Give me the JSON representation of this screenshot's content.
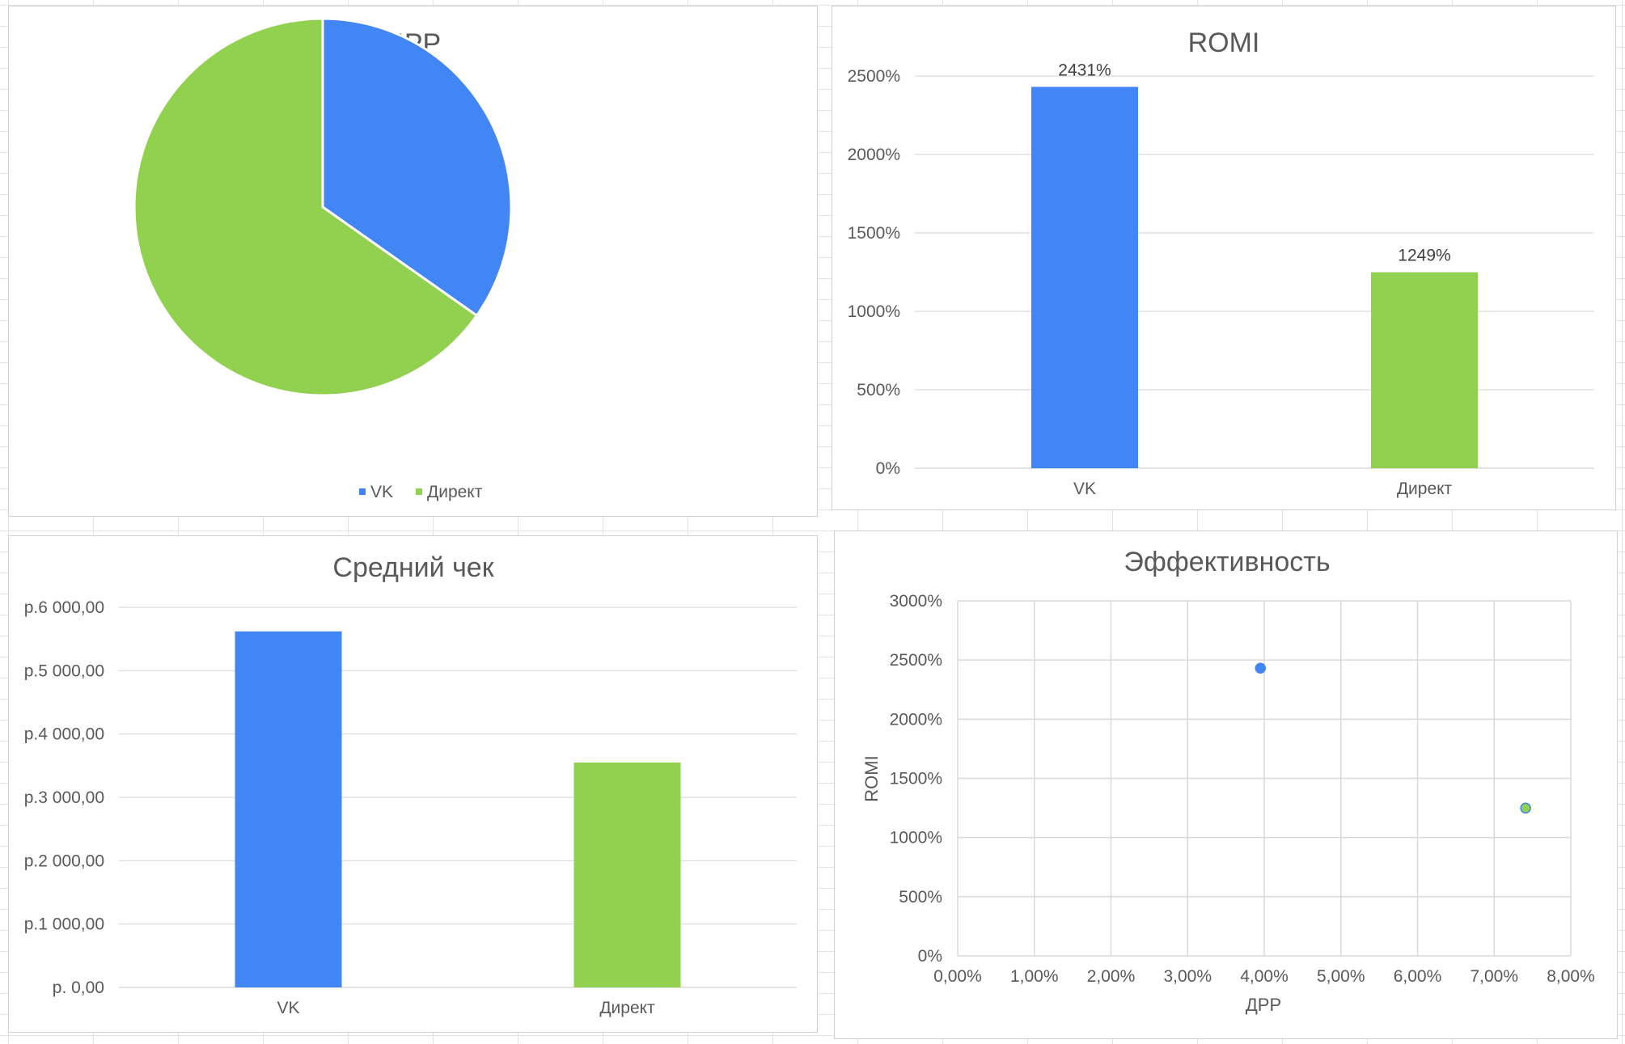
{
  "colors": {
    "vk": "#4285f4",
    "direct": "#92d050",
    "grid": "#d9d9d9",
    "text": "#595959"
  },
  "chart_data": [
    {
      "id": "drr",
      "type": "pie",
      "title": "ДРР",
      "categories": [
        "VK",
        "Директ"
      ],
      "values": [
        3.95,
        7.41
      ],
      "legend": [
        "VK",
        "Директ"
      ],
      "legend_position": "bottom",
      "data_labels": false
    },
    {
      "id": "romi",
      "type": "bar",
      "title": "ROMI",
      "categories": [
        "VK",
        "Директ"
      ],
      "values": [
        2431,
        1249
      ],
      "data_labels": [
        "2431%",
        "1249%"
      ],
      "y_ticks": [
        "0%",
        "500%",
        "1000%",
        "1500%",
        "2000%",
        "2500%"
      ],
      "ylim": [
        0,
        2500
      ],
      "grid": true
    },
    {
      "id": "avg_check",
      "type": "bar",
      "title": "Средний чек",
      "categories": [
        "VK",
        "Директ"
      ],
      "values": [
        5620,
        3550
      ],
      "y_ticks": [
        "р. 0,00",
        "р.1 000,00",
        "р.2 000,00",
        "р.3 000,00",
        "р.4 000,00",
        "р.5 000,00",
        "р.6 000,00"
      ],
      "ylim": [
        0,
        6000
      ],
      "grid": true
    },
    {
      "id": "efficiency",
      "type": "scatter",
      "title": "Эффективность",
      "xlabel": "ДРР",
      "ylabel": "ROMI",
      "points": [
        {
          "x": 3.95,
          "y": 2431
        },
        {
          "x": 7.41,
          "y": 1249
        }
      ],
      "x_ticks": [
        "0,00%",
        "1,00%",
        "2,00%",
        "3,00%",
        "4,00%",
        "5,00%",
        "6,00%",
        "7,00%",
        "8,00%"
      ],
      "y_ticks": [
        "0%",
        "500%",
        "1000%",
        "1500%",
        "2000%",
        "2500%",
        "3000%"
      ],
      "xlim": [
        0,
        8
      ],
      "ylim": [
        0,
        3000
      ],
      "grid": true
    }
  ]
}
